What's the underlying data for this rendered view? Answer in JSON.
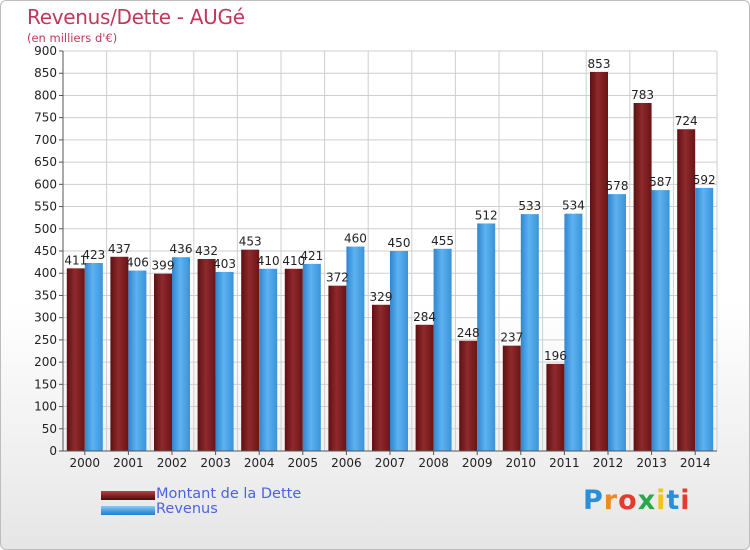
{
  "header": {
    "title": "Revenus/Dette - AUGé",
    "subtitle": "(en milliers d'€)"
  },
  "colors": {
    "dette": "#7a1c1e",
    "revenus": "#3e9be3"
  },
  "logo": {
    "text": "Proxiti",
    "letters": [
      "P",
      "r",
      "o",
      "x",
      "i",
      "t",
      "i"
    ]
  },
  "chart_data": {
    "type": "bar",
    "title": "Revenus/Dette - AUGé",
    "subtitle": "(en milliers d'€)",
    "ylim": [
      0,
      900
    ],
    "yticks": [
      0,
      50,
      100,
      150,
      200,
      250,
      300,
      350,
      400,
      450,
      500,
      550,
      600,
      650,
      700,
      750,
      800,
      850,
      900
    ],
    "grid": true,
    "legend_position": "bottom-left",
    "categories": [
      "2000",
      "2001",
      "2002",
      "2003",
      "2004",
      "2005",
      "2006",
      "2007",
      "2008",
      "2009",
      "2010",
      "2011",
      "2012",
      "2013",
      "2014"
    ],
    "series": [
      {
        "name": "Montant de la Dette",
        "color": "#7a1c1e",
        "values": [
          411,
          437,
          399,
          432,
          453,
          410,
          372,
          329,
          284,
          248,
          237,
          196,
          853,
          783,
          724
        ]
      },
      {
        "name": "Revenus",
        "color": "#3e9be3",
        "values": [
          423,
          406,
          436,
          403,
          410,
          421,
          460,
          450,
          455,
          512,
          533,
          534,
          578,
          587,
          592
        ]
      }
    ]
  }
}
